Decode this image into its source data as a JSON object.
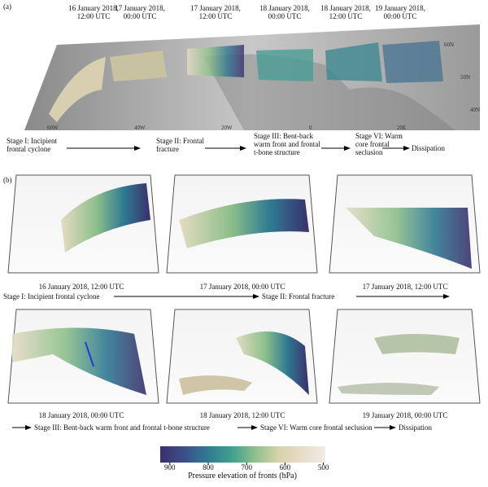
{
  "panel_a": {
    "label": "(a)",
    "times": [
      "16 January 2018, 12:00 UTC",
      "17 January 2018, 00:00 UTC",
      "17 January 2018, 12:00 UTC",
      "18 January 2018, 00:00 UTC",
      "18 January 2018, 12:00 UTC",
      "19 January 2018, 00:00 UTC"
    ],
    "stages": [
      "Stage I: Incipient frontal cyclone",
      "Stage II: Frontal fracture",
      "Stage III: Bent-back warm front and frontal t-bone structure",
      "Stage VI: Warm core frontal seclusion",
      "Dissipation"
    ],
    "lat_labels": [
      "60N",
      "50N",
      "40N"
    ],
    "lon_labels": [
      "60W",
      "40W",
      "20W",
      "0",
      "20E"
    ]
  },
  "panel_b": {
    "label": "(b)",
    "row1": {
      "times": [
        "16 January 2018, 12:00 UTC",
        "17 January 2018, 00:00 UTC",
        "17 January 2018, 12:00 UTC"
      ],
      "stages": [
        "Stage I: Incipient frontal cyclone",
        "Stage II: Frontal fracture"
      ]
    },
    "row2": {
      "times": [
        "18 January 2018, 00:00 UTC",
        "18 January 2018, 12:00 UTC",
        "19 January 2018, 00:00 UTC"
      ],
      "stages": [
        "Stage III: Bent-back warm front and frontal t-bone structure",
        "Stage VI: Warm core frontal seclusion",
        "Dissipation"
      ]
    }
  },
  "colorbar": {
    "title": "Pressure elevation of fronts (hPa)",
    "lim": [
      925,
      495
    ],
    "ticks": [
      900,
      800,
      700,
      600,
      500
    ],
    "colors": [
      "#3b2f6b",
      "#3b4f8a",
      "#2f7a92",
      "#3f9e8e",
      "#8cbf8a",
      "#d6d2a8",
      "#e8dcc8",
      "#f0ece6"
    ]
  }
}
